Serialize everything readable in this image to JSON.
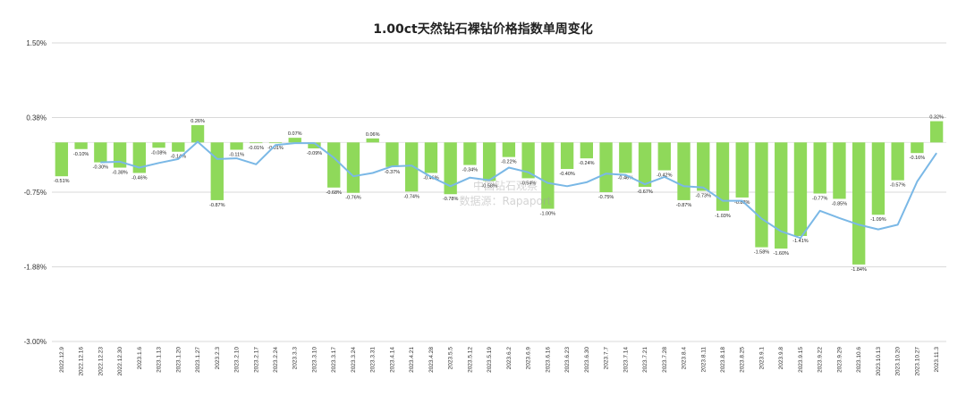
{
  "chart_data": {
    "type": "bar",
    "title": "1.00ct天然钻石裸钻价格指数单周变化",
    "xlabel": "",
    "ylabel": "",
    "yticks": [
      "1.50%",
      "0.38%",
      "-0.75%",
      "-1.88%",
      "-3.00%"
    ],
    "ytick_values": [
      1.5,
      0.375,
      -0.75,
      -1.875,
      -3.0
    ],
    "ylim": [
      -3.0,
      1.5
    ],
    "grid": "horizontal",
    "colors": {
      "bar": "#8fd95a",
      "line": "#7ab8e6",
      "grid": "#d9d9d9"
    },
    "categories": [
      "2022.12.9",
      "2022.12.16",
      "2022.12.23",
      "2022.12.30",
      "2023.1.6",
      "2023.1.13",
      "2023.1.20",
      "2023.1.27",
      "2023.2.3",
      "2023.2.10",
      "2023.2.17",
      "2023.2.24",
      "2023.3.3",
      "2023.3.10",
      "2023.3.17",
      "2023.3.24",
      "2023.3.31",
      "2023.4.14",
      "2023.4.21",
      "2023.4.28",
      "2023.5.5",
      "2023.5.12",
      "2023.5.19",
      "2023.6.2",
      "2023.6.9",
      "2023.6.16",
      "2023.6.23",
      "2023.6.30",
      "2023.7.7",
      "2023.7.14",
      "2023.7.21",
      "2023.7.28",
      "2023.8.4",
      "2023.8.11",
      "2023.8.18",
      "2023.8.25",
      "2023.9.1",
      "2023.9.8",
      "2023.9.15",
      "2023.9.22",
      "2023.9.29",
      "2023.10.6",
      "2023.10.13",
      "2023.10.20",
      "2023.10.27",
      "2023.11.3"
    ],
    "series": [
      {
        "type": "bar",
        "values": [
          -0.51,
          -0.1,
          -0.3,
          -0.38,
          -0.46,
          -0.08,
          -0.14,
          0.26,
          -0.87,
          -0.11,
          -0.01,
          -0.01,
          0.07,
          -0.09,
          -0.68,
          -0.76,
          0.06,
          -0.37,
          -0.74,
          -0.46,
          -0.78,
          -0.34,
          -0.58,
          -0.22,
          -0.54,
          -1.0,
          -0.4,
          -0.24,
          -0.75,
          -0.46,
          -0.67,
          -0.42,
          -0.87,
          -0.73,
          -1.03,
          -0.83,
          -1.58,
          -1.6,
          -1.41,
          -0.77,
          -0.85,
          -1.84,
          -1.09,
          -0.57,
          -0.16,
          0.32
        ],
        "labels": [
          "-0.51%",
          "-0.10%",
          "-0.30%",
          "-0.38%",
          "-0.46%",
          "-0.08%",
          "-0.14%",
          "0.26%",
          "-0.87%",
          "-0.11%",
          "-0.01%",
          "-0.01%",
          "0.07%",
          "-0.09%",
          "-0.68%",
          "-0.76%",
          "0.06%",
          "-0.37%",
          "-0.74%",
          "-0.46%",
          "-0.78%",
          "-0.34%",
          "-0.58%",
          "-0.22%",
          "-0.54%",
          "-1.00%",
          "-0.40%",
          "-0.24%",
          "-0.75%",
          "-0.46%",
          "-0.67%",
          "-0.42%",
          "-0.87%",
          "-0.73%",
          "-1.03%",
          "-0.83%",
          "-1.58%",
          "-1.60%",
          "-1.41%",
          "-0.77%",
          "-0.85%",
          "-1.84%",
          "-1.09%",
          "-0.57%",
          "-0.16%",
          "0.32%"
        ]
      },
      {
        "type": "line",
        "values": [
          null,
          null,
          -0.3,
          -0.29,
          -0.38,
          -0.31,
          -0.25,
          0.01,
          -0.25,
          -0.24,
          -0.33,
          -0.04,
          -0.01,
          -0.01,
          -0.23,
          -0.51,
          -0.46,
          -0.36,
          -0.35,
          -0.52,
          -0.66,
          -0.53,
          -0.57,
          -0.38,
          -0.45,
          -0.61,
          -0.66,
          -0.6,
          -0.47,
          -0.49,
          -0.63,
          -0.52,
          -0.66,
          -0.68,
          -0.88,
          -0.88,
          -1.15,
          -1.34,
          -1.44,
          -1.03,
          -1.14,
          -1.24,
          -1.31,
          -1.24,
          -0.59,
          -0.16
        ]
      }
    ]
  },
  "watermark": {
    "line1": "中国钻石观察",
    "line2": "数据源：Rapaport"
  }
}
